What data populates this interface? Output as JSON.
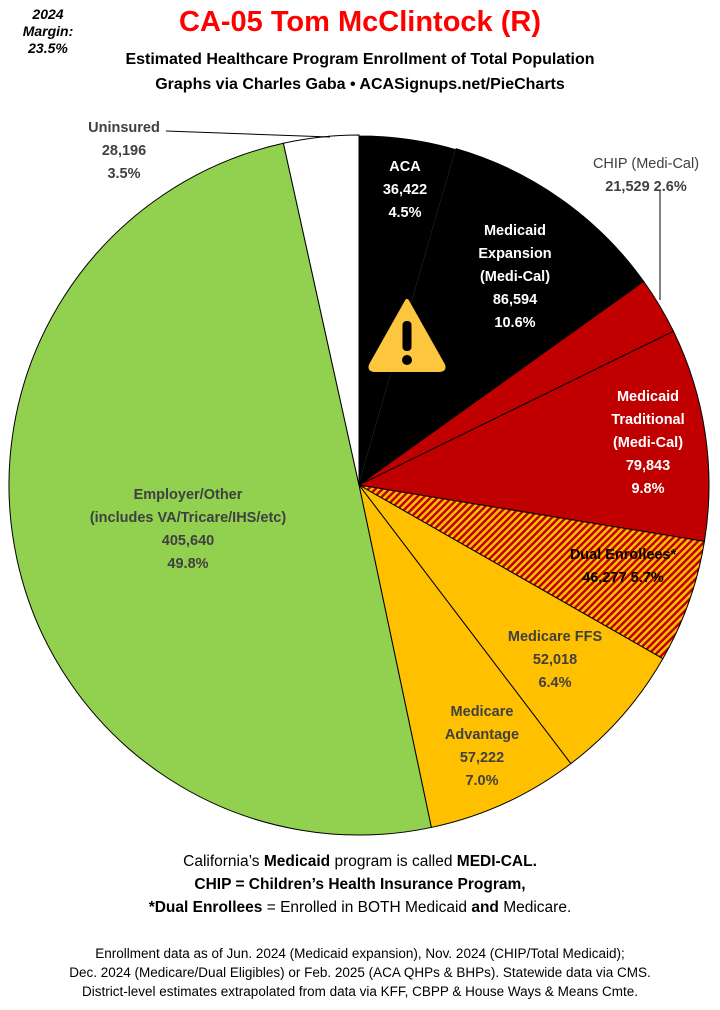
{
  "header": {
    "margin_label": "2024 Margin:",
    "margin_value": "23.5%",
    "title": "CA-05 Tom McClintock (R)",
    "subtitle": "Estimated Healthcare Program Enrollment of Total Population",
    "credit": "Graphs via Charles Gaba  •  ACASignups.net/PieCharts"
  },
  "chart_data": {
    "type": "pie",
    "start": "12 o'clock, clockwise",
    "slices": [
      {
        "name": "ACA",
        "value": 36422,
        "percent": "4.5%",
        "value_label": "36,422",
        "color": "#000000"
      },
      {
        "name": "Medicaid Expansion (Medi-Cal)",
        "value": 86594,
        "percent": "10.6%",
        "value_label": "86,594",
        "color": "#000000"
      },
      {
        "name": "CHIP (Medi-Cal)",
        "value": 21529,
        "percent": "2.6%",
        "value_label": "21,529",
        "color": "#c00000"
      },
      {
        "name": "Medicaid Traditional (Medi-Cal)",
        "value": 79843,
        "percent": "9.8%",
        "value_label": "79,843",
        "color": "#c00000"
      },
      {
        "name": "Dual Enrollees*",
        "value": 46277,
        "percent": "5.7%",
        "value_label": "46,277",
        "color": "hatch #c00000/#ffc000"
      },
      {
        "name": "Medicare FFS",
        "value": 52018,
        "percent": "6.4%",
        "value_label": "52,018",
        "color": "#ffc000"
      },
      {
        "name": "Medicare Advantage",
        "value": 57222,
        "percent": "7.0%",
        "value_label": "57,222",
        "color": "#ffc000"
      },
      {
        "name": "Employer/Other (includes VA/Tricare/IHS/etc)",
        "value": 405640,
        "percent": "49.8%",
        "value_label": "405,640",
        "color": "#92d050"
      },
      {
        "name": "Uninsured",
        "value": 28196,
        "percent": "3.5%",
        "value_label": "28,196",
        "color": "#ffffff"
      }
    ],
    "labels": {
      "aca": [
        "ACA",
        "36,422",
        "4.5%"
      ],
      "expansion": [
        "Medicaid",
        "Expansion",
        "(Medi-Cal)",
        "86,594",
        "10.6%"
      ],
      "chip": [
        "CHIP (Medi-Cal)",
        "21,529 2.6%"
      ],
      "traditional": [
        "Medicaid",
        "Traditional",
        "(Medi-Cal)",
        "79,843",
        "9.8%"
      ],
      "dual": [
        "Dual Enrollees*",
        "46,277 5.7%"
      ],
      "ffs": [
        "Medicare FFS",
        "52,018",
        "6.4%"
      ],
      "advantage": [
        "Medicare",
        "Advantage",
        "57,222",
        "7.0%"
      ],
      "employer": [
        "Employer/Other",
        "(includes VA/Tricare/IHS/etc)",
        "405,640",
        "49.8%"
      ],
      "uninsured": [
        "Uninsured",
        "28,196",
        "3.5%"
      ]
    },
    "annotation_icon": "warning-icon"
  },
  "footer": {
    "line1": {
      "a": "California’s ",
      "b": "Medicaid",
      "c": " program is called ",
      "d": "MEDI-CAL."
    },
    "line2": "CHIP = Children’s Health Insurance Program,",
    "line3": {
      "a": "*Dual Enrollees",
      "b": " = Enrolled in BOTH Medicaid ",
      "c": "and",
      "d": " Medicare."
    },
    "notes": [
      "Enrollment data as of Jun. 2024 (Medicaid expansion), Nov. 2024 (CHIP/Total Medicaid);",
      "Dec. 2024 (Medicare/Dual Eligibles) or Feb. 2025 (ACA QHPs & BHPs). Statewide data via CMS.",
      "District-level estimates extrapolated from data via KFF, CBPP & House Ways & Means Cmte."
    ]
  }
}
